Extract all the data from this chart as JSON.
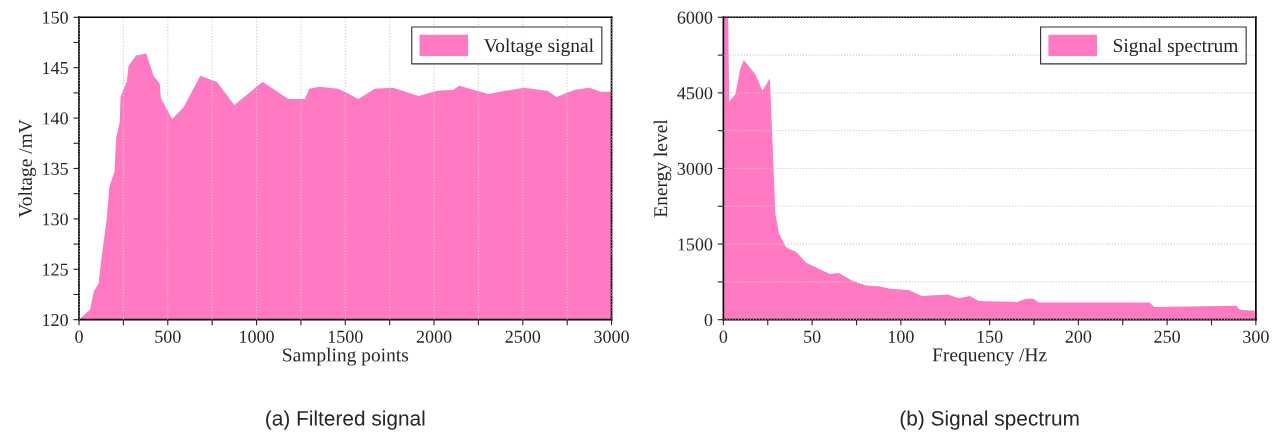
{
  "chart_data": [
    {
      "type": "area",
      "title": "(a) Filtered signal",
      "xlabel": "Sampling points",
      "ylabel": "Voltage /mV",
      "xlim": [
        0,
        3000
      ],
      "ylim": [
        120,
        150
      ],
      "xticks": [
        0,
        {
          "value": 250,
          "label": null
        },
        500,
        {
          "value": 750,
          "label": null
        },
        1000,
        {
          "value": 1250,
          "label": null
        },
        1500,
        {
          "value": 1750,
          "label": null
        },
        2000,
        {
          "value": 2250,
          "label": null
        },
        2500,
        {
          "value": 2750,
          "label": null
        },
        3000
      ],
      "yticks": [
        120,
        {
          "value": 122.5,
          "label": null
        },
        125,
        {
          "value": 127.5,
          "label": null
        },
        130,
        {
          "value": 132.5,
          "label": null
        },
        135,
        {
          "value": 137.5,
          "label": null
        },
        140,
        {
          "value": 142.5,
          "label": null
        },
        145,
        {
          "value": 147.5,
          "label": null
        },
        150
      ],
      "grid": "x",
      "legend": "top right",
      "x": [
        0,
        62,
        83,
        110,
        124,
        155,
        171,
        200,
        209,
        229,
        234,
        269,
        279,
        321,
        379,
        420,
        455,
        461,
        524,
        590,
        683,
        776,
        875,
        1034,
        1179,
        1272,
        1297,
        1355,
        1459,
        1521,
        1573,
        1666,
        1769,
        1914,
        2017,
        2110,
        2141,
        2307,
        2400,
        2503,
        2638,
        2690,
        2793,
        2876,
        2938,
        3000
      ],
      "series": [
        {
          "name": "Voltage signal",
          "color": "#ff7ac2",
          "values": [
            120.0,
            121.0,
            122.8,
            123.6,
            125.8,
            129.9,
            133.2,
            134.7,
            138.0,
            139.6,
            142.2,
            143.6,
            145.2,
            146.2,
            146.4,
            144.2,
            143.4,
            142.0,
            139.9,
            141.1,
            144.2,
            143.6,
            141.3,
            143.6,
            141.9,
            141.9,
            142.9,
            143.1,
            142.9,
            142.4,
            141.9,
            142.9,
            143.0,
            142.2,
            142.7,
            142.8,
            143.2,
            142.4,
            142.7,
            143.0,
            142.7,
            142.1,
            142.8,
            143.0,
            142.6,
            142.6
          ]
        }
      ]
    },
    {
      "type": "area",
      "title": "(b) Signal spectrum",
      "xlabel": "Frequency /Hz",
      "ylabel": "Energy level",
      "xlim": [
        0,
        300
      ],
      "ylim": [
        0,
        6000
      ],
      "xticks": [
        0,
        {
          "value": 25,
          "label": null
        },
        50,
        {
          "value": 75,
          "label": null
        },
        100,
        {
          "value": 125,
          "label": null
        },
        150,
        {
          "value": 175,
          "label": null
        },
        200,
        {
          "value": 225,
          "label": null
        },
        250,
        {
          "value": 275,
          "label": null
        },
        300
      ],
      "yticks": [
        0,
        {
          "value": 750,
          "label": null
        },
        1500,
        {
          "value": 2250,
          "label": null
        },
        3000,
        {
          "value": 3750,
          "label": null
        },
        4500,
        {
          "value": 5250,
          "label": null
        },
        6000
      ],
      "grid": "y",
      "legend": "top right",
      "x": [
        0,
        2.7,
        3.3,
        6.8,
        9.4,
        11.5,
        18,
        22,
        26.2,
        29.3,
        31.3,
        35.4,
        40.9,
        46.7,
        60,
        65,
        73.3,
        80.4,
        87.6,
        93.8,
        104.4,
        111.8,
        126.5,
        132.6,
        138.8,
        143.9,
        165.4,
        170.5,
        174.6,
        177.7,
        240,
        242.8,
        289,
        291,
        300
      ],
      "series": [
        {
          "name": "Signal spectrum",
          "color": "#ff7ac2",
          "values": [
            6000,
            6000,
            4330,
            4480,
            4970,
            5150,
            4870,
            4540,
            4790,
            2100,
            1710,
            1430,
            1350,
            1130,
            906,
            926,
            763,
            678,
            665,
            613,
            587,
            469,
            502,
            424,
            469,
            372,
            352,
            417,
            417,
            339,
            339,
            254,
            274,
            196,
            176
          ]
        }
      ]
    }
  ]
}
